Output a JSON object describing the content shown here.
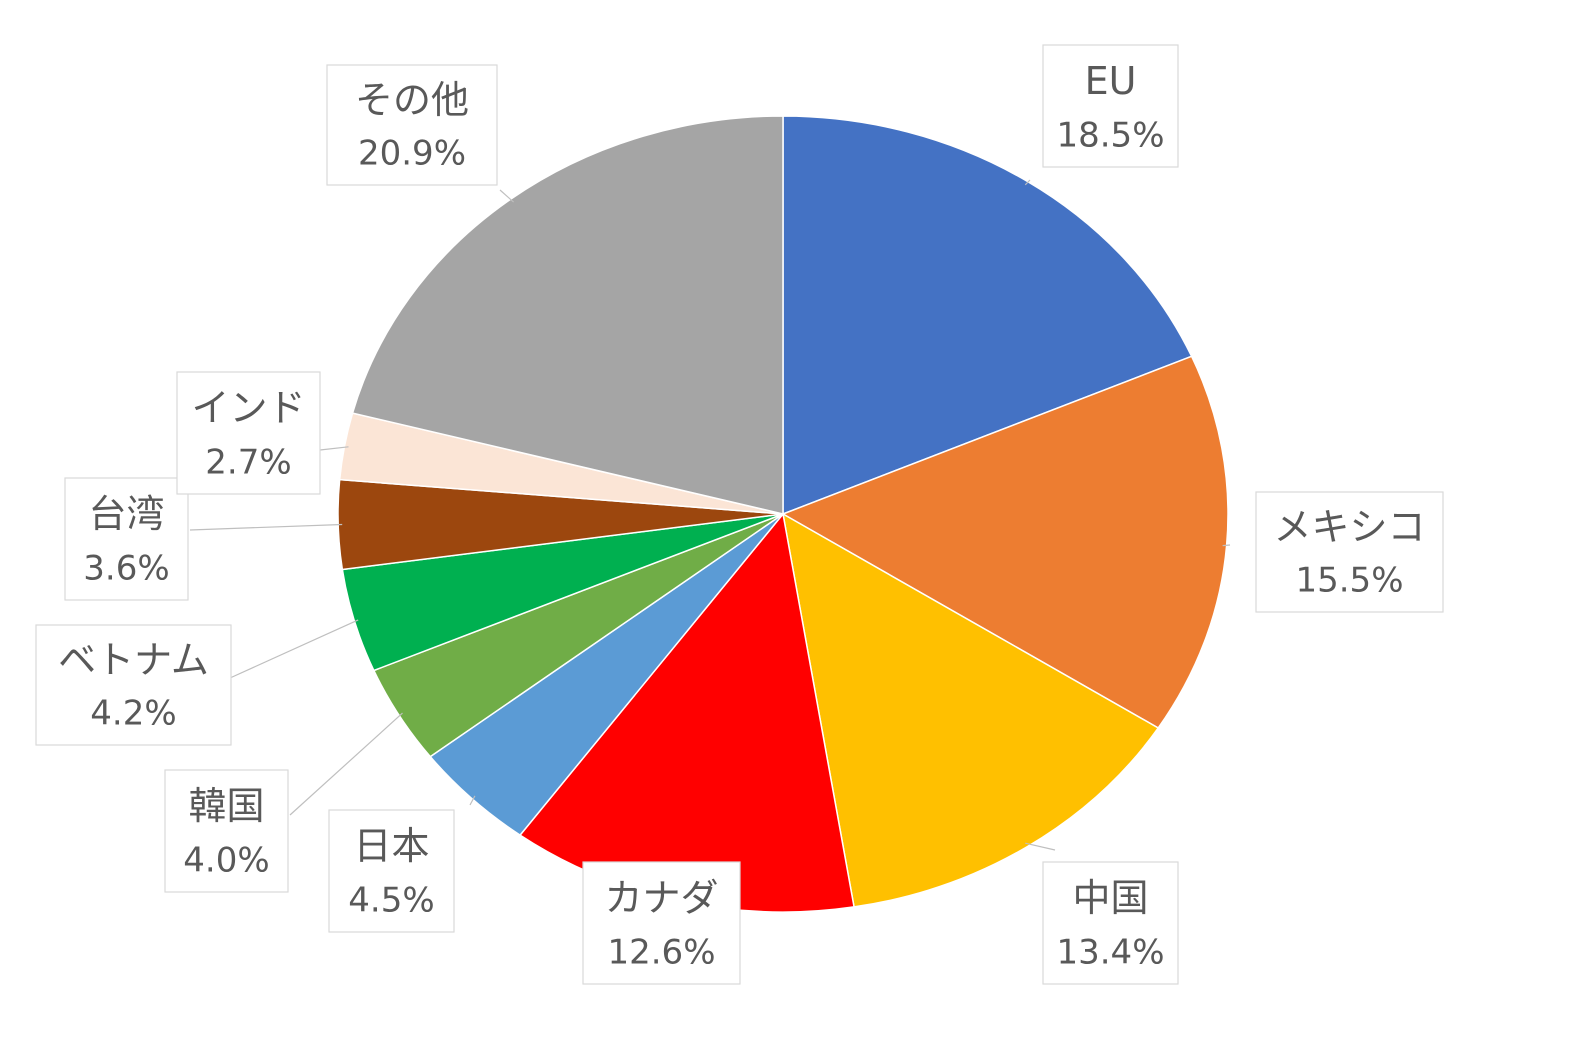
{
  "chart_data": {
    "type": "pie",
    "title": "",
    "start_angle_deg": 0,
    "direction": "clockwise",
    "slices": [
      {
        "label": "EU",
        "value": 18.5,
        "value_text": "18.5%",
        "color": "#4472C4"
      },
      {
        "label": "メキシコ",
        "value": 15.5,
        "value_text": "15.5%",
        "color": "#ED7D31"
      },
      {
        "label": "中国",
        "value": 13.4,
        "value_text": "13.4%",
        "color": "#FFC000"
      },
      {
        "label": "カナダ",
        "value": 12.6,
        "value_text": "12.6%",
        "color": "#FF0000"
      },
      {
        "label": "日本",
        "value": 4.5,
        "value_text": "4.5%",
        "color": "#5B9BD5"
      },
      {
        "label": "韓国",
        "value": 4.0,
        "value_text": "4.0%",
        "color": "#70AD47"
      },
      {
        "label": "ベトナム",
        "value": 4.2,
        "value_text": "4.2%",
        "color": "#00B050"
      },
      {
        "label": "台湾",
        "value": 3.6,
        "value_text": "3.6%",
        "color": "#9C470E"
      },
      {
        "label": "インド",
        "value": 2.7,
        "value_text": "2.7%",
        "color": "#FBE5D6"
      },
      {
        "label": "その他",
        "value": 20.9,
        "value_text": "20.9%",
        "color": "#A5A5A5"
      }
    ],
    "legend": "none",
    "data_labels": "callouts"
  }
}
